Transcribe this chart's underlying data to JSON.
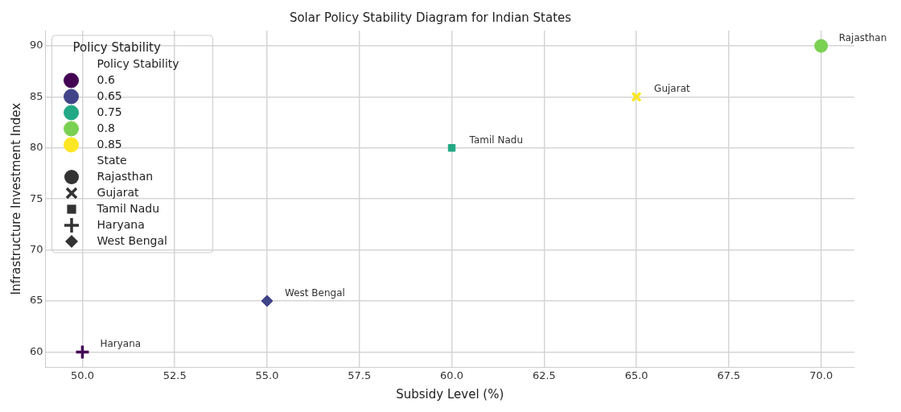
{
  "chart_data": {
    "type": "scatter",
    "title": "Solar Policy Stability Diagram for Indian States",
    "xlabel": "Subsidy Level (%)",
    "ylabel": "Infrastructure Investment Index",
    "legend_title": "Policy Stability",
    "legend": "top left",
    "grid": true,
    "annotations": [
      "Policy Stability",
      "State"
    ],
    "xlim": [
      49,
      70.9
    ],
    "xticks": [
      {
        "value": 50,
        "label": "50.0"
      },
      {
        "value": 52.5,
        "label": "52.5"
      },
      {
        "value": 55,
        "label": "55.0"
      },
      {
        "value": 57.5,
        "label": "57.5"
      },
      {
        "value": 60,
        "label": "60.0"
      },
      {
        "value": 62.5,
        "label": "62.5"
      },
      {
        "value": 65,
        "label": "65.0"
      },
      {
        "value": 67.5,
        "label": "67.5"
      },
      {
        "value": 70,
        "label": "70.0"
      }
    ],
    "ylim": [
      58.5,
      91.5
    ],
    "yticks": [
      60,
      65,
      70,
      75,
      80,
      85,
      90
    ],
    "series": [
      {
        "name": "0.8",
        "color": "#7ad151",
        "marker": "circle",
        "x": [
          70
        ],
        "values": [
          90
        ],
        "value_labels": [
          "Rajasthan"
        ]
      },
      {
        "name": "0.85",
        "color": "#fde725",
        "marker": "x",
        "x": [
          65
        ],
        "values": [
          85
        ],
        "value_labels": [
          "Gujarat"
        ]
      },
      {
        "name": "0.75",
        "color": "#22a884",
        "marker": "square",
        "x": [
          60
        ],
        "values": [
          80
        ],
        "value_labels": [
          "Tamil Nadu"
        ]
      },
      {
        "name": "0.6",
        "color": "#440154",
        "marker": "cross",
        "x": [
          50
        ],
        "values": [
          60
        ],
        "value_labels": [
          "Haryana"
        ]
      },
      {
        "name": "0.65",
        "color": "#414487",
        "marker": "diamond",
        "x": [
          55
        ],
        "values": [
          65
        ],
        "value_labels": [
          "West Bengal"
        ]
      }
    ]
  }
}
